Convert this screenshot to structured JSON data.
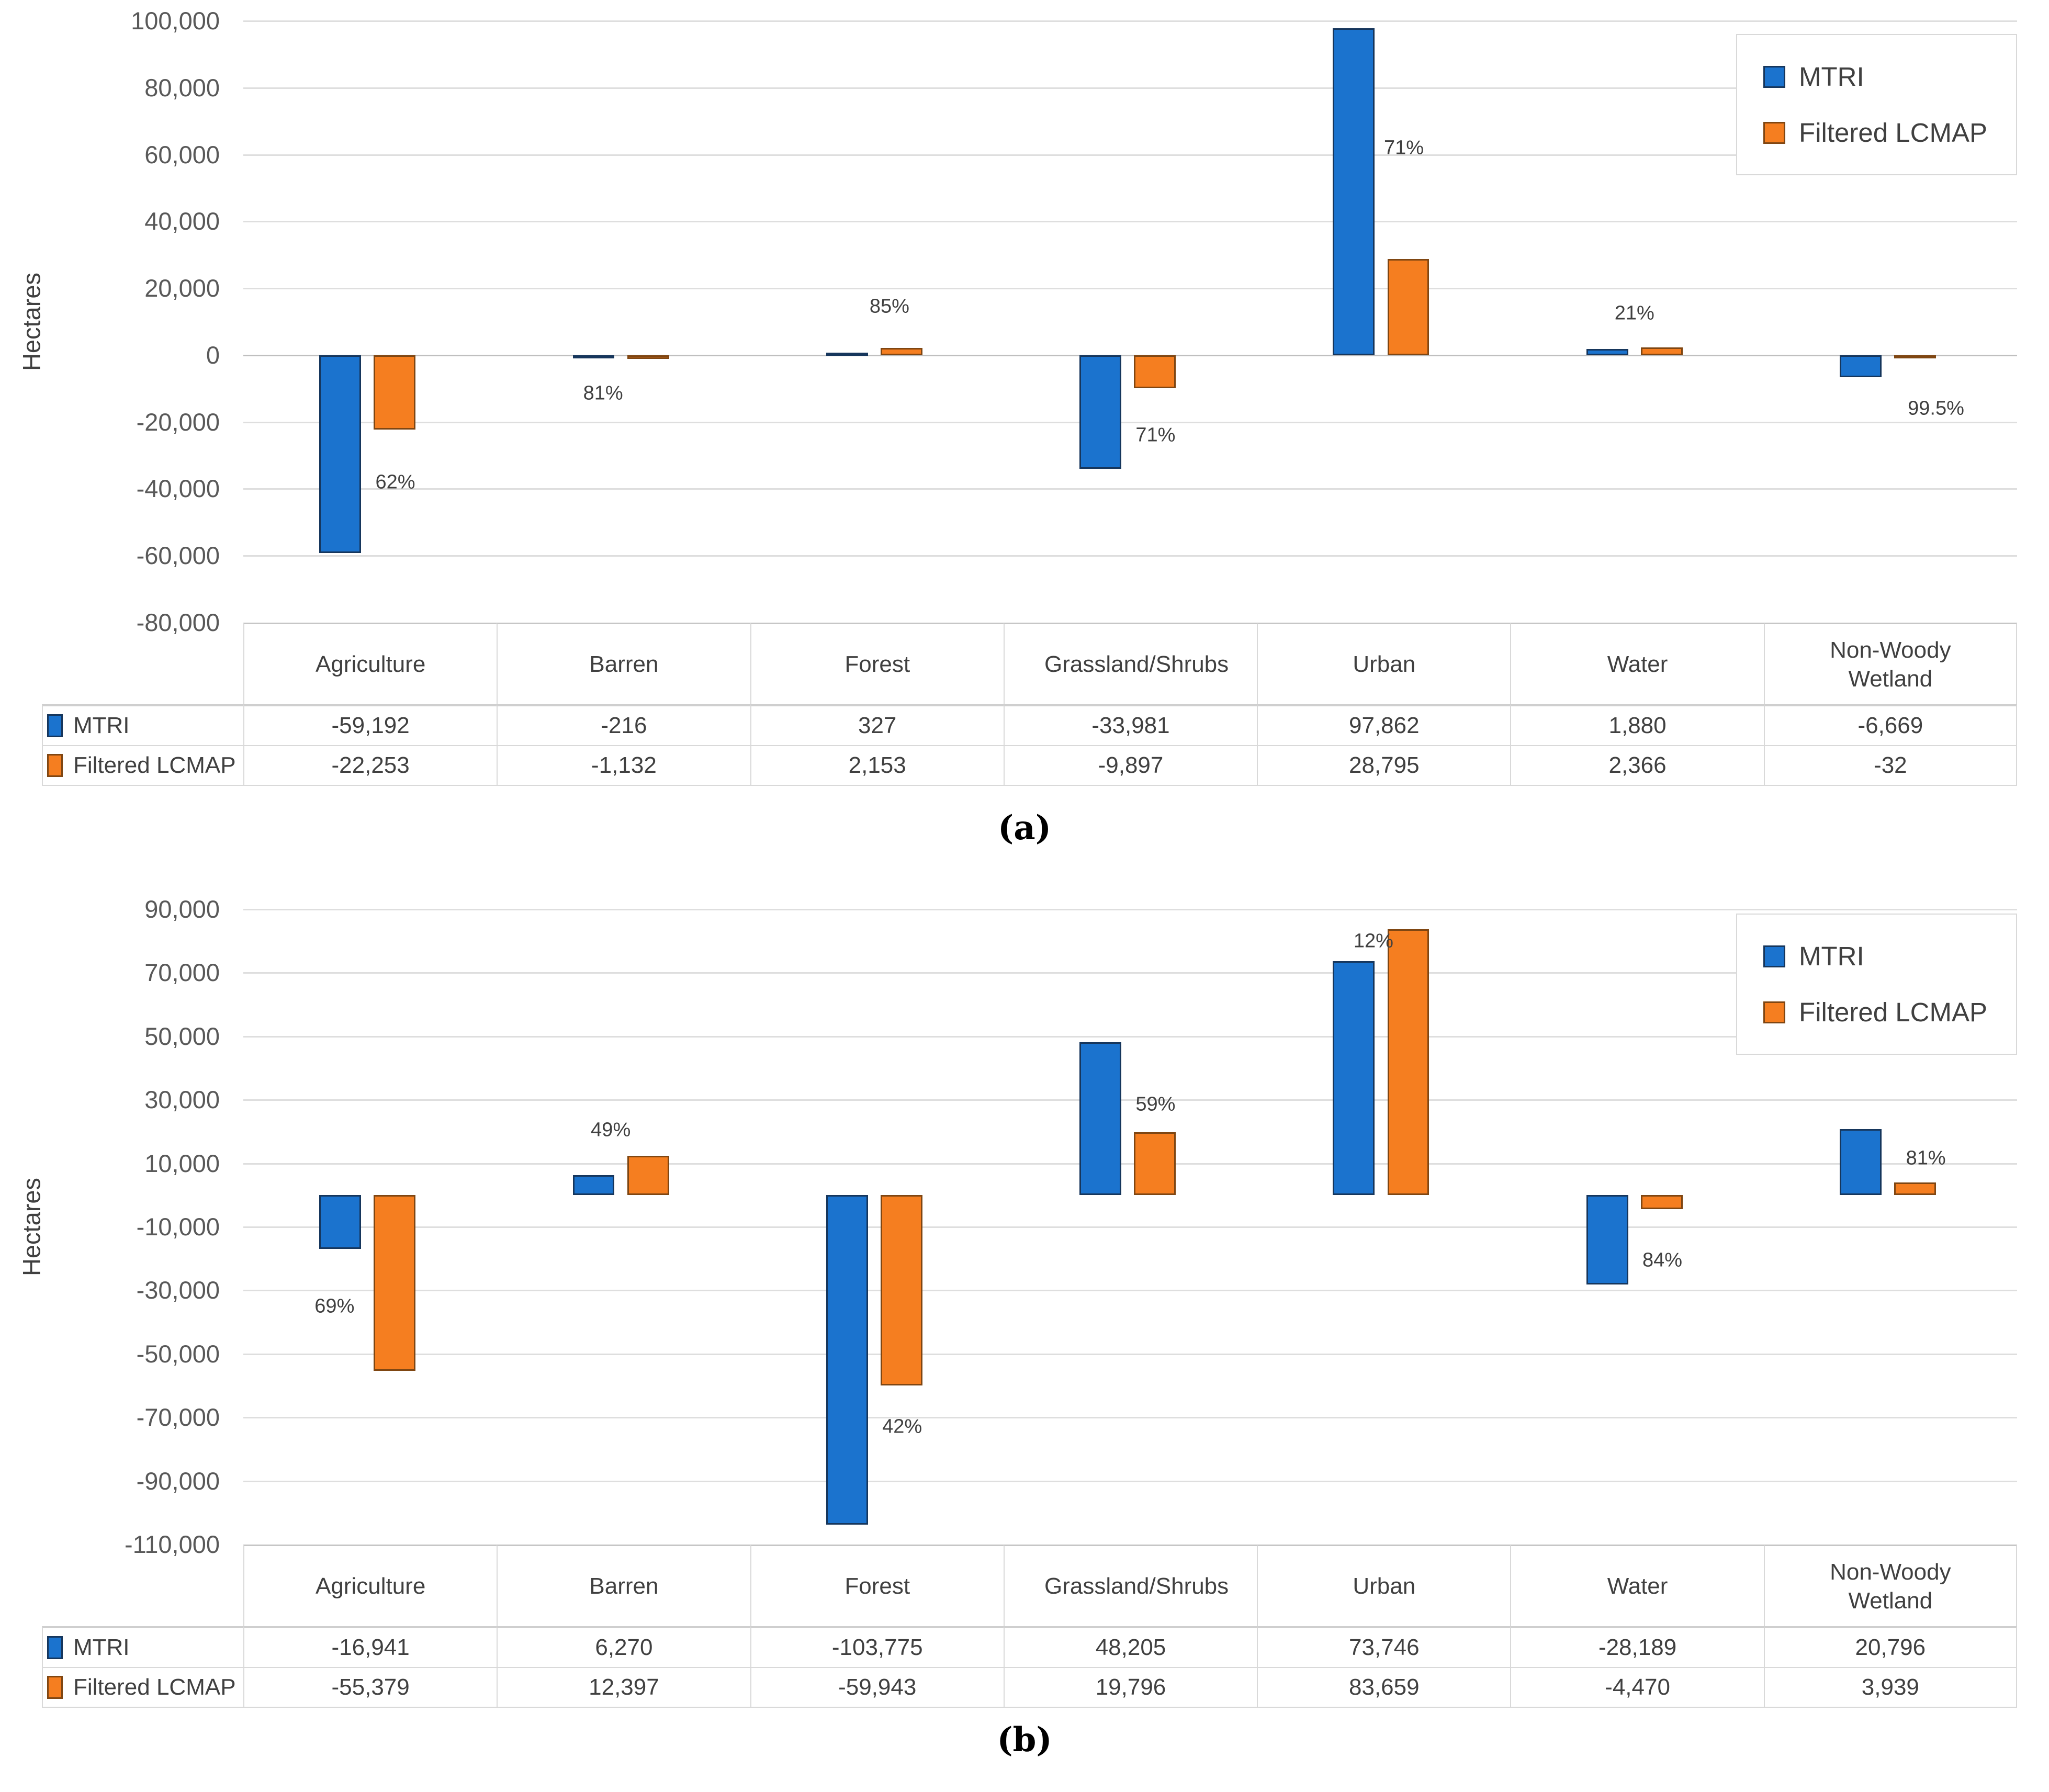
{
  "figure": {
    "panel_captions": [
      "(a)",
      "(b)"
    ]
  },
  "series_styles": [
    {
      "name": "MTRI",
      "color": "#1B73CE",
      "border": "#16365C"
    },
    {
      "name": "Filtered LCMAP",
      "color": "#F57E20",
      "border": "#7F4612"
    }
  ],
  "chart_data": [
    {
      "type": "bar",
      "panel": "a",
      "title": "",
      "xlabel": "",
      "ylabel": "Hectares",
      "ylim": [
        -80000,
        100000
      ],
      "ytick_step": 20000,
      "grid": true,
      "legend_position": "top-right",
      "legend_entries": [
        "MTRI",
        "Filtered LCMAP"
      ],
      "categories": [
        "Agriculture",
        "Barren",
        "Forest",
        "Grassland/Shrubs",
        "Urban",
        "Water",
        "Non-Woody Wetland"
      ],
      "series": [
        {
          "name": "MTRI",
          "values": [
            -59192,
            -216,
            327,
            -33981,
            97862,
            1880,
            -6669
          ]
        },
        {
          "name": "Filtered LCMAP",
          "values": [
            -22253,
            -1132,
            2153,
            -9897,
            28795,
            2366,
            -32
          ]
        }
      ],
      "pct_labels": [
        {
          "text": "62%",
          "xf": 0.6,
          "y": -38000
        },
        {
          "text": "81%",
          "xf": 0.42,
          "y": -11500
        },
        {
          "text": "85%",
          "xf": 0.55,
          "y": 14500
        },
        {
          "text": "71%",
          "xf": 0.6,
          "y": -24000
        },
        {
          "text": "71%",
          "xf": 0.58,
          "y": 62000
        },
        {
          "text": "21%",
          "xf": 0.49,
          "y": 12500
        },
        {
          "text": "99.5%",
          "xf": 0.68,
          "y": -16000
        }
      ],
      "caption": "(a)"
    },
    {
      "type": "bar",
      "panel": "b",
      "title": "",
      "xlabel": "",
      "ylabel": "Hectares",
      "ylim": [
        -110000,
        90000
      ],
      "ytick_step": 20000,
      "grid": true,
      "legend_position": "top-right",
      "legend_entries": [
        "MTRI",
        "Filtered LCMAP"
      ],
      "categories": [
        "Agriculture",
        "Barren",
        "Forest",
        "Grassland/Shrubs",
        "Urban",
        "Water",
        "Non-Woody Wetland"
      ],
      "series": [
        {
          "name": "MTRI",
          "values": [
            -16941,
            6270,
            -103775,
            48205,
            73746,
            -28189,
            20796
          ]
        },
        {
          "name": "Filtered LCMAP",
          "values": [
            -55379,
            12397,
            -59943,
            19796,
            83659,
            -4470,
            3939
          ]
        }
      ],
      "pct_labels": [
        {
          "text": "69%",
          "xf": 0.36,
          "y": -35000
        },
        {
          "text": "49%",
          "xf": 0.45,
          "y": 20500
        },
        {
          "text": "42%",
          "xf": 0.6,
          "y": -73000
        },
        {
          "text": "59%",
          "xf": 0.6,
          "y": 28500
        },
        {
          "text": "12%",
          "xf": 0.46,
          "y": 80000
        },
        {
          "text": "84%",
          "xf": 0.6,
          "y": -20500
        },
        {
          "text": "81%",
          "xf": 0.64,
          "y": 11500
        }
      ],
      "caption": "(b)"
    }
  ]
}
